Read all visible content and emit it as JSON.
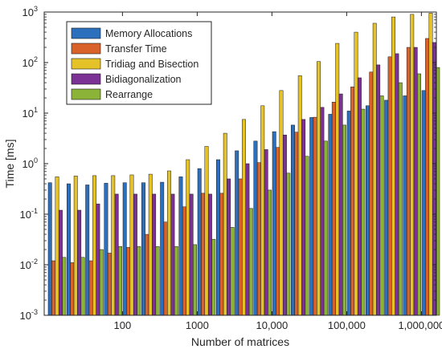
{
  "chart_data": {
    "type": "bar",
    "title": "",
    "xlabel": "Number of matrices",
    "ylabel": "Time [ms]",
    "y_scale": "log",
    "ylim": [
      0.001,
      1000
    ],
    "y_ticks": [
      {
        "exp": -3,
        "label": "10",
        "sup": "-3"
      },
      {
        "exp": -2,
        "label": "10",
        "sup": "-2"
      },
      {
        "exp": -1,
        "label": "10",
        "sup": "-1"
      },
      {
        "exp": 0,
        "label": "10",
        "sup": "0"
      },
      {
        "exp": 1,
        "label": "10",
        "sup": "1"
      },
      {
        "exp": 2,
        "label": "10",
        "sup": "2"
      },
      {
        "exp": 3,
        "label": "10",
        "sup": "3"
      }
    ],
    "x_tick_labels": [
      {
        "after_category": 4,
        "label": "100"
      },
      {
        "after_category": 8,
        "label": "1000"
      },
      {
        "after_category": 12,
        "label": "10,000"
      },
      {
        "after_category": 16,
        "label": "100,000"
      },
      {
        "after_category": 20,
        "label": "1,000,000"
      }
    ],
    "categories": [
      "",
      "",
      "",
      "",
      "",
      "",
      "",
      "",
      "",
      "",
      "",
      "",
      "",
      "",
      "",
      "",
      "",
      "",
      "",
      "",
      ""
    ],
    "legend_position": "top-left",
    "grid": false,
    "series": [
      {
        "name": "Memory Allocations",
        "color": "#2c6fbd",
        "values": [
          0.42,
          0.4,
          0.38,
          0.41,
          0.42,
          0.42,
          0.43,
          0.55,
          0.8,
          1.2,
          1.8,
          2.8,
          4.3,
          5.8,
          8.2,
          9.5,
          11,
          14,
          18,
          22,
          28
        ]
      },
      {
        "name": "Transfer Time",
        "color": "#d9622b",
        "values": [
          0.012,
          0.011,
          0.012,
          0.017,
          0.022,
          0.04,
          0.07,
          0.14,
          0.26,
          0.26,
          0.5,
          1.05,
          2.1,
          4.2,
          8.3,
          16.5,
          33,
          65,
          130,
          200,
          300
        ]
      },
      {
        "name": "Tridiag and Bisection",
        "color": "#e6c229",
        "values": [
          0.55,
          0.57,
          0.58,
          0.58,
          0.6,
          0.62,
          0.72,
          1.2,
          2.2,
          4.0,
          7.5,
          14,
          28,
          55,
          105,
          240,
          400,
          600,
          800,
          900,
          950
        ]
      },
      {
        "name": "Bidiagonalization",
        "color": "#7b3294",
        "values": [
          0.12,
          0.12,
          0.16,
          0.25,
          0.25,
          0.25,
          0.25,
          0.25,
          0.25,
          0.5,
          1.0,
          1.9,
          3.7,
          7.5,
          13,
          24,
          50,
          90,
          150,
          200,
          250
        ]
      },
      {
        "name": "Rearrange",
        "color": "#8bb338",
        "values": [
          0.014,
          0.014,
          0.02,
          0.023,
          0.023,
          0.023,
          0.023,
          0.025,
          0.032,
          0.055,
          0.13,
          0.3,
          0.65,
          1.4,
          2.8,
          5.8,
          12,
          22,
          40,
          60,
          80
        ]
      }
    ]
  }
}
